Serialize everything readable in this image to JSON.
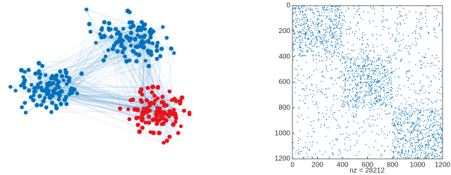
{
  "chart_data": [
    {
      "type": "network"
    },
    {
      "type": "spy",
      "xlabel": "nz = 28212",
      "xlim": [
        0,
        1200
      ],
      "ylim": [
        0,
        1200
      ],
      "y_reversed": true,
      "xticks": [
        0,
        200,
        400,
        600,
        800,
        1000,
        1200
      ],
      "yticks": [
        0,
        200,
        400,
        600,
        800,
        1000,
        1200
      ],
      "color": "#0072bd"
    }
  ]
}
